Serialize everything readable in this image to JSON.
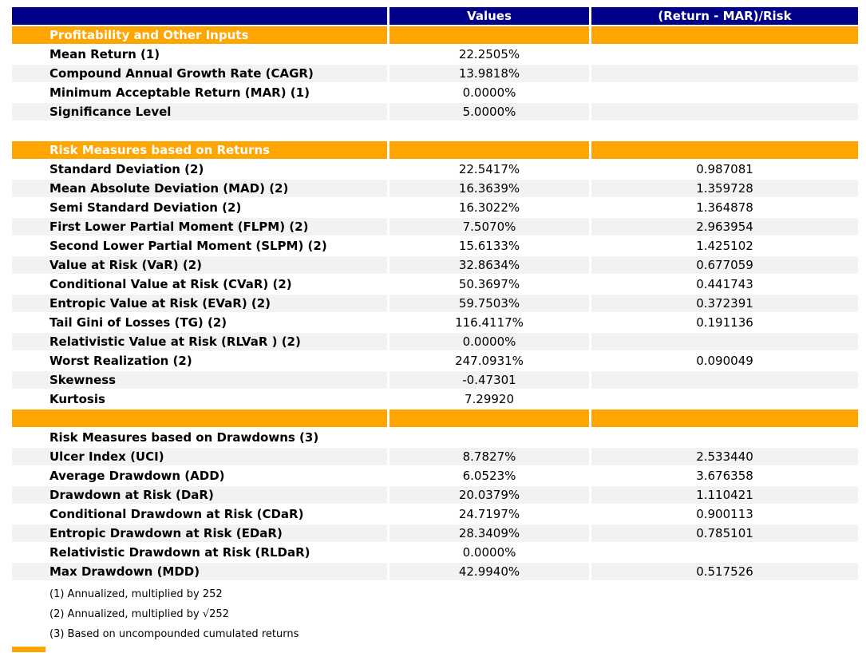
{
  "table": {
    "columns": {
      "values_label": "Values",
      "ratio_label": "(Return - MAR)/Risk"
    },
    "colors": {
      "header_bg": "#00008B",
      "section_bg": "#FFA500",
      "alt_row_bg": "#F2F2F2",
      "header_text": "#FFFFFF",
      "body_text": "#000000"
    },
    "sections": [
      {
        "style": "orange",
        "title": "Profitability and Other Inputs",
        "rows": [
          {
            "label": "Mean Return (1)",
            "value": "22.2505%",
            "ratio": ""
          },
          {
            "label": "Compound Annual Growth Rate (CAGR)",
            "value": "13.9818%",
            "ratio": ""
          },
          {
            "label": "Minimum Acceptable Return (MAR) (1)",
            "value": "0.0000%",
            "ratio": ""
          },
          {
            "label": "Significance Level",
            "value": "5.0000%",
            "ratio": ""
          }
        ]
      },
      {
        "style": "spacer",
        "title": "",
        "rows": []
      },
      {
        "style": "orange",
        "title": "Risk Measures based on Returns",
        "rows": [
          {
            "label": "Standard Deviation (2)",
            "value": "22.5417%",
            "ratio": "0.987081"
          },
          {
            "label": "Mean Absolute Deviation (MAD) (2)",
            "value": "16.3639%",
            "ratio": "1.359728"
          },
          {
            "label": "Semi Standard Deviation (2)",
            "value": "16.3022%",
            "ratio": "1.364878"
          },
          {
            "label": "First Lower Partial Moment (FLPM) (2)",
            "value": "7.5070%",
            "ratio": "2.963954"
          },
          {
            "label": "Second Lower Partial Moment (SLPM) (2)",
            "value": "15.6133%",
            "ratio": "1.425102"
          },
          {
            "label": "Value at Risk (VaR) (2)",
            "value": "32.8634%",
            "ratio": "0.677059"
          },
          {
            "label": "Conditional Value at Risk (CVaR) (2)",
            "value": "50.3697%",
            "ratio": "0.441743"
          },
          {
            "label": "Entropic Value at Risk (EVaR) (2)",
            "value": "59.7503%",
            "ratio": "0.372391"
          },
          {
            "label": "Tail Gini of Losses (TG) (2)",
            "value": "116.4117%",
            "ratio": "0.191136"
          },
          {
            "label": "Relativistic Value at Risk (RLVaR ) (2)",
            "value": "0.0000%",
            "ratio": ""
          },
          {
            "label": "Worst Realization (2)",
            "value": "247.0931%",
            "ratio": "0.090049"
          },
          {
            "label": "Skewness",
            "value": "-0.47301",
            "ratio": ""
          },
          {
            "label": "Kurtosis",
            "value": "7.29920",
            "ratio": ""
          }
        ]
      },
      {
        "style": "orange",
        "title": "",
        "rows": []
      },
      {
        "style": "plain",
        "title": "",
        "rows": [
          {
            "label": "Risk Measures based on Drawdowns (3)",
            "value": "",
            "ratio": ""
          },
          {
            "label": "Ulcer Index (UCI)",
            "value": "8.7827%",
            "ratio": "2.533440"
          },
          {
            "label": "Average Drawdown (ADD)",
            "value": "6.0523%",
            "ratio": "3.676358"
          },
          {
            "label": "Drawdown at Risk (DaR)",
            "value": "20.0379%",
            "ratio": "1.110421"
          },
          {
            "label": "Conditional Drawdown at Risk (CDaR)",
            "value": "24.7197%",
            "ratio": "0.900113"
          },
          {
            "label": "Entropic Drawdown at Risk (EDaR)",
            "value": "28.3409%",
            "ratio": "0.785101"
          },
          {
            "label": "Relativistic Drawdown at Risk (RLDaR)",
            "value": "0.0000%",
            "ratio": ""
          },
          {
            "label": "Max Drawdown (MDD)",
            "value": "42.9940%",
            "ratio": "0.517526"
          }
        ]
      }
    ],
    "footnotes": [
      "(1) Annualized, multiplied by 252",
      "(2) Annualized, multiplied by √252",
      "(3) Based on uncompounded cumulated returns"
    ]
  }
}
